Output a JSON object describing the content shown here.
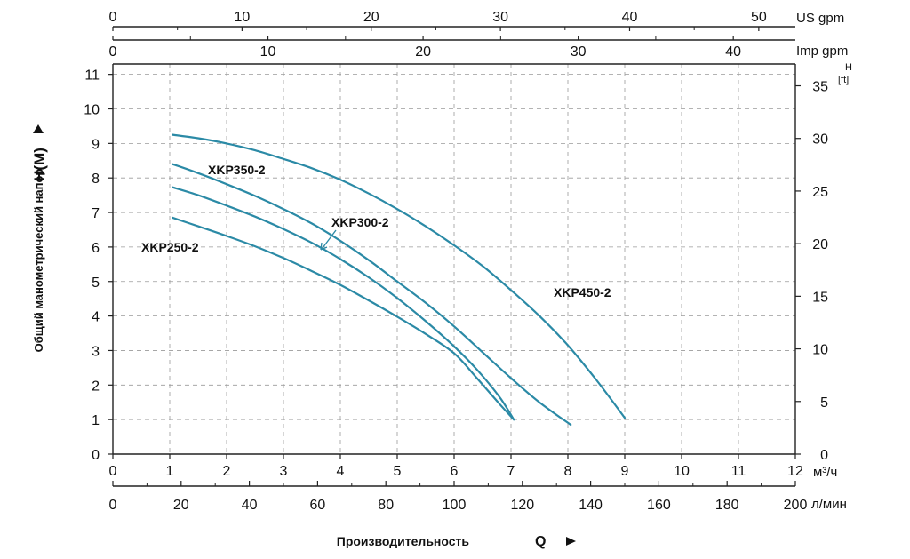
{
  "chart_data": {
    "type": "line",
    "title": "",
    "x_main": {
      "label": "м³/ч",
      "range": [
        0,
        12
      ],
      "ticks": [
        "0",
        "1",
        "2",
        "3",
        "4",
        "5",
        "6",
        "7",
        "8",
        "9",
        "10",
        "11",
        "12"
      ]
    },
    "x_lmin": {
      "label": "л/мин",
      "range": [
        0,
        200
      ],
      "ticks": [
        "0",
        "20",
        "40",
        "60",
        "80",
        "100",
        "120",
        "140",
        "160",
        "180",
        "200"
      ]
    },
    "x_usgpm": {
      "label": "US gpm",
      "range": [
        0,
        52.83
      ],
      "ticks": [
        "0",
        "10",
        "20",
        "30",
        "40",
        "50"
      ]
    },
    "x_impgpm": {
      "label": "Imp gpm",
      "range": [
        0,
        44
      ],
      "ticks": [
        "0",
        "10",
        "20",
        "30",
        "40"
      ]
    },
    "y_main": {
      "label": "Общий манометрический напор",
      "symbol": "H(M)",
      "range": [
        0,
        11.3
      ],
      "ticks": [
        "0",
        "1",
        "2",
        "3",
        "4",
        "5",
        "6",
        "7",
        "8",
        "9",
        "10",
        "11"
      ]
    },
    "y_ft": {
      "label_top": "H",
      "label_bottom": "[ft]",
      "range": [
        0,
        37.07
      ],
      "ticks": [
        "0",
        "5",
        "10",
        "15",
        "20",
        "25",
        "30",
        "35"
      ]
    },
    "x_title": {
      "text": "Производительность",
      "symbol": "Q"
    },
    "grid": true,
    "line_color": "#2b8aa6",
    "series": [
      {
        "name": "XKP250-2",
        "points": [
          [
            1.05,
            6.85
          ],
          [
            1.5,
            6.6
          ],
          [
            2,
            6.32
          ],
          [
            2.5,
            6.02
          ],
          [
            3,
            5.68
          ],
          [
            3.5,
            5.3
          ],
          [
            4,
            4.9
          ],
          [
            4.5,
            4.45
          ],
          [
            5,
            3.98
          ],
          [
            5.5,
            3.48
          ],
          [
            6,
            2.92
          ],
          [
            6.4,
            2.2
          ],
          [
            6.8,
            1.45
          ],
          [
            7.05,
            1.0
          ]
        ]
      },
      {
        "name": "XKP300-2",
        "points": [
          [
            1.05,
            7.73
          ],
          [
            1.5,
            7.5
          ],
          [
            2,
            7.2
          ],
          [
            2.5,
            6.88
          ],
          [
            3,
            6.52
          ],
          [
            3.5,
            6.12
          ],
          [
            4,
            5.65
          ],
          [
            4.5,
            5.12
          ],
          [
            5,
            4.52
          ],
          [
            5.5,
            3.85
          ],
          [
            6,
            3.12
          ],
          [
            6.4,
            2.45
          ],
          [
            6.8,
            1.65
          ],
          [
            7.05,
            1.0
          ]
        ]
      },
      {
        "name": "XKP350-2",
        "points": [
          [
            1.05,
            8.4
          ],
          [
            1.5,
            8.14
          ],
          [
            2,
            7.82
          ],
          [
            2.5,
            7.48
          ],
          [
            3,
            7.1
          ],
          [
            3.5,
            6.68
          ],
          [
            4,
            6.18
          ],
          [
            4.5,
            5.62
          ],
          [
            5,
            5.0
          ],
          [
            5.5,
            4.38
          ],
          [
            6,
            3.7
          ],
          [
            6.5,
            2.95
          ],
          [
            7,
            2.2
          ],
          [
            7.5,
            1.5
          ],
          [
            8.05,
            0.85
          ]
        ]
      },
      {
        "name": "XKP450-2",
        "points": [
          [
            1.05,
            9.25
          ],
          [
            1.5,
            9.15
          ],
          [
            2,
            9.0
          ],
          [
            2.5,
            8.8
          ],
          [
            3,
            8.55
          ],
          [
            3.5,
            8.28
          ],
          [
            4,
            7.95
          ],
          [
            4.5,
            7.55
          ],
          [
            5,
            7.1
          ],
          [
            5.5,
            6.6
          ],
          [
            6,
            6.05
          ],
          [
            6.5,
            5.45
          ],
          [
            7,
            4.75
          ],
          [
            7.5,
            4.0
          ],
          [
            8,
            3.15
          ],
          [
            8.5,
            2.15
          ],
          [
            9,
            1.05
          ]
        ]
      }
    ],
    "annotations": [
      {
        "series": "XKP350-2",
        "text": "XKP350-2"
      },
      {
        "series": "XKP300-2",
        "text": "XKP300-2"
      },
      {
        "series": "XKP250-2",
        "text": "XKP250-2"
      },
      {
        "series": "XKP450-2",
        "text": "XKP450-2"
      }
    ]
  }
}
